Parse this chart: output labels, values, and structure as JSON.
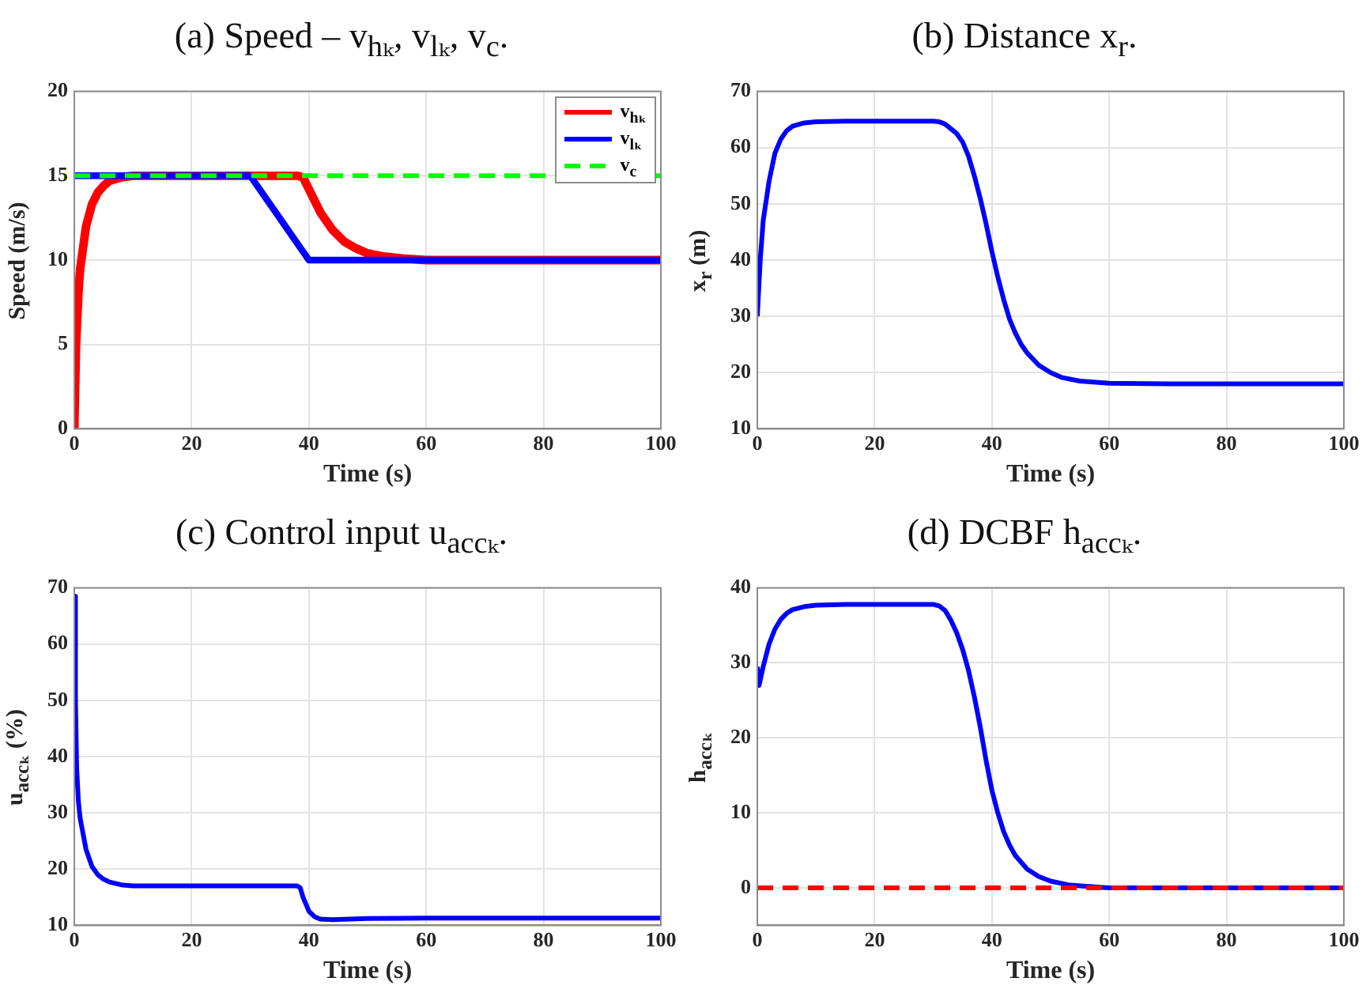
{
  "chart_data": [
    {
      "type": "line",
      "title": "(a) Speed – v$_{hₖ}$, v$_{lₖ}$, v$_{c}$.",
      "xlabel": "Time (s)",
      "ylabel": "Speed (m/s)",
      "xlim": [
        0,
        100
      ],
      "xticks": [
        0,
        20,
        40,
        60,
        80,
        100
      ],
      "ylim": [
        0,
        20
      ],
      "yticks": [
        0,
        5,
        10,
        15,
        20
      ],
      "grid": true,
      "legend": "top right",
      "series": [
        {
          "name": "v$_{hₖ}$",
          "color": "#ff0000",
          "x": [
            0,
            0.3,
            0.7,
            1,
            2,
            3,
            4,
            5,
            6,
            8,
            10,
            15,
            38,
            39,
            40,
            42,
            44,
            46,
            48,
            50,
            53,
            56,
            60,
            65,
            100
          ],
          "values": [
            0,
            5,
            8,
            9.5,
            12,
            13.3,
            14,
            14.4,
            14.7,
            14.9,
            15,
            15,
            15,
            14.9,
            14.2,
            12.8,
            11.8,
            11.1,
            10.7,
            10.4,
            10.2,
            10.1,
            10,
            10,
            10
          ]
        },
        {
          "name": "v$_{lₖ}$",
          "color": "#0000ff",
          "x": [
            0,
            30,
            40,
            100
          ],
          "values": [
            15,
            15,
            10,
            10
          ]
        },
        {
          "name": "v$_{c}$",
          "color": "#00ff00",
          "line_style": "dashed",
          "x": [
            0,
            100
          ],
          "values": [
            15,
            15
          ]
        }
      ]
    },
    {
      "type": "line",
      "title": "(b) Distance x$_{r}$.",
      "xlabel": "Time (s)",
      "ylabel": "x$_{r}$ (m)",
      "xlim": [
        0,
        100
      ],
      "xticks": [
        0,
        20,
        40,
        60,
        80,
        100
      ],
      "ylim": [
        10,
        70
      ],
      "yticks": [
        10,
        20,
        30,
        40,
        50,
        60,
        70
      ],
      "grid": true,
      "series": [
        {
          "color": "#0000ff",
          "x": [
            0,
            0.5,
            1,
            2,
            3,
            4,
            5,
            6,
            8,
            10,
            15,
            30,
            31,
            32,
            34,
            35,
            36,
            37,
            38,
            39,
            40,
            41,
            42,
            43,
            44,
            45,
            46,
            48,
            50,
            52,
            55,
            60,
            70,
            100
          ],
          "values": [
            30,
            40,
            47,
            54,
            59,
            61.5,
            63,
            63.8,
            64.4,
            64.6,
            64.7,
            64.7,
            64.6,
            64.2,
            62.5,
            61,
            58.5,
            55,
            51,
            46.5,
            41.5,
            37,
            33,
            29.5,
            27,
            25,
            23.5,
            21.3,
            20,
            19.1,
            18.5,
            18.1,
            18,
            18
          ]
        }
      ]
    },
    {
      "type": "line",
      "title": "(c) Control input u$_{accₖ}$.",
      "xlabel": "Time (s)",
      "ylabel": "u$_{accₖ}$ (%)",
      "xlim": [
        0,
        100
      ],
      "xticks": [
        0,
        20,
        40,
        60,
        80,
        100
      ],
      "ylim": [
        10,
        70
      ],
      "yticks": [
        10,
        20,
        30,
        40,
        50,
        60,
        70
      ],
      "grid": true,
      "series": [
        {
          "color": "#0000ff",
          "x": [
            0,
            0.2,
            0.4,
            0.7,
            1,
            2,
            3,
            4,
            5,
            6,
            8,
            10,
            15,
            38,
            38.5,
            39,
            40,
            41,
            42,
            44,
            50,
            60,
            100
          ],
          "values": [
            68.5,
            50,
            38,
            32,
            29,
            23.5,
            20.5,
            19,
            18.2,
            17.7,
            17.2,
            17,
            17,
            17,
            16.7,
            15,
            12.5,
            11.5,
            11.1,
            11,
            11.2,
            11.3,
            11.3
          ]
        }
      ]
    },
    {
      "type": "line",
      "title": "(d) DCBF h$_{accₖ}$.",
      "xlabel": "Time (s)",
      "ylabel": "h$_{accₖ}$",
      "xlim": [
        0,
        100
      ],
      "xticks": [
        0,
        20,
        40,
        60,
        80,
        100
      ],
      "ylim": [
        -5,
        40
      ],
      "yticks": [
        0,
        10,
        20,
        30,
        40
      ],
      "grid": true,
      "series": [
        {
          "color": "#0000ff",
          "x": [
            0,
            0.3,
            1,
            2,
            3,
            4,
            5,
            6,
            8,
            10,
            15,
            30,
            31,
            32,
            33,
            34,
            35,
            36,
            37,
            38,
            39,
            40,
            41,
            42,
            43,
            44,
            46,
            48,
            50,
            53,
            56,
            60,
            65,
            100
          ],
          "values": [
            29.5,
            27,
            29.5,
            32.5,
            34.5,
            35.8,
            36.6,
            37.1,
            37.5,
            37.7,
            37.8,
            37.8,
            37.6,
            37,
            35.7,
            34,
            31.8,
            29,
            25.5,
            21.5,
            17,
            13,
            10,
            7.5,
            5.7,
            4.3,
            2.5,
            1.5,
            0.9,
            0.4,
            0.2,
            0,
            0,
            0
          ]
        }
      ],
      "ref_lines": [
        {
          "axis": "y",
          "value": 0,
          "color": "#ff0000",
          "line_style": "dashed"
        }
      ]
    }
  ]
}
